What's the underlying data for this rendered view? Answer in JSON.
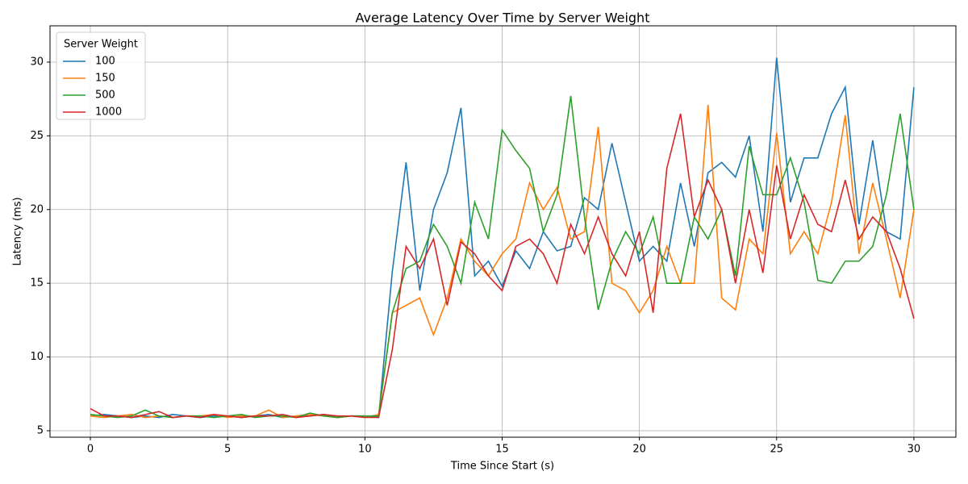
{
  "chart_data": {
    "type": "line",
    "title": "Average Latency Over Time by Server Weight",
    "x_label": "Time Since Start (s)",
    "y_label": "Latency (ms)",
    "legend_title": "Server Weight",
    "legend_position": "upper left",
    "grid": true,
    "xlim": [
      -1.47,
      31.53
    ],
    "ylim": [
      4.56,
      32.46
    ],
    "xticks": [
      0,
      5,
      10,
      15,
      20,
      25,
      30
    ],
    "yticks": [
      5,
      10,
      15,
      20,
      25,
      30
    ],
    "x": [
      0,
      0.5,
      1,
      1.5,
      2,
      2.5,
      3,
      3.5,
      4,
      4.5,
      5,
      5.5,
      6,
      6.5,
      7,
      7.5,
      8,
      8.5,
      9,
      9.5,
      10,
      10.5,
      11,
      11.5,
      12,
      12.5,
      13,
      13.5,
      14,
      14.5,
      15,
      15.5,
      16,
      16.5,
      17,
      17.5,
      18,
      18.5,
      19,
      19.5,
      20,
      20.5,
      21,
      21.5,
      22,
      22.5,
      23,
      23.5,
      24,
      24.5,
      25,
      25.5,
      26,
      26.5,
      27,
      27.5,
      28,
      28.5,
      29,
      29.5,
      30
    ],
    "series": [
      {
        "name": "100",
        "color": "#1f77b4",
        "values": [
          6.0,
          6.1,
          6.0,
          5.9,
          6.0,
          5.9,
          6.1,
          6.0,
          5.9,
          6.0,
          6.0,
          5.9,
          6.0,
          6.1,
          5.9,
          6.0,
          6.0,
          6.1,
          5.9,
          6.0,
          6.0,
          5.9,
          15.8,
          23.2,
          14.5,
          20.0,
          22.5,
          26.9,
          15.5,
          16.5,
          14.8,
          17.2,
          16.0,
          18.5,
          17.2,
          17.5,
          20.8,
          20.0,
          24.5,
          20.5,
          16.5,
          17.5,
          16.5,
          21.8,
          17.5,
          22.5,
          23.2,
          22.2,
          25.0,
          18.5,
          30.3,
          20.5,
          23.5,
          23.5,
          26.5,
          28.3,
          19.0,
          24.7,
          18.5,
          18.0,
          28.3
        ]
      },
      {
        "name": "150",
        "color": "#ff7f0e",
        "values": [
          6.0,
          5.9,
          6.0,
          6.1,
          5.9,
          6.0,
          5.9,
          6.0,
          6.0,
          6.1,
          5.9,
          6.0,
          6.0,
          6.4,
          5.9,
          6.0,
          6.1,
          6.0,
          5.9,
          6.0,
          5.9,
          6.1,
          13.0,
          13.5,
          14.0,
          11.5,
          14.0,
          18.0,
          16.5,
          15.5,
          17.0,
          18.0,
          21.8,
          20.0,
          21.5,
          18.0,
          18.5,
          25.6,
          15.0,
          14.5,
          13.0,
          14.5,
          17.5,
          15.0,
          15.0,
          27.1,
          14.0,
          13.2,
          18.0,
          17.0,
          25.2,
          17.0,
          18.5,
          17.0,
          20.5,
          26.4,
          17.0,
          21.8,
          18.0,
          14.0,
          20.0
        ]
      },
      {
        "name": "500",
        "color": "#2ca02c",
        "values": [
          6.1,
          6.0,
          5.9,
          6.0,
          6.4,
          6.0,
          5.9,
          6.0,
          6.0,
          5.9,
          6.0,
          6.1,
          5.9,
          6.0,
          6.0,
          5.9,
          6.2,
          6.0,
          5.9,
          6.0,
          6.0,
          6.0,
          13.0,
          16.0,
          16.5,
          19.0,
          17.5,
          15.0,
          20.5,
          18.0,
          25.4,
          24.0,
          22.8,
          18.5,
          21.0,
          27.7,
          19.5,
          13.2,
          16.5,
          18.5,
          17.0,
          19.5,
          15.0,
          15.0,
          19.5,
          18.0,
          20.0,
          15.5,
          24.3,
          21.0,
          21.0,
          23.5,
          20.5,
          15.2,
          15.0,
          16.5,
          16.5,
          17.5,
          21.0,
          26.5,
          20.0
        ]
      },
      {
        "name": "1000",
        "color": "#d62728",
        "values": [
          6.5,
          6.0,
          6.0,
          5.9,
          6.1,
          6.3,
          5.9,
          6.0,
          5.9,
          6.1,
          6.0,
          5.9,
          6.0,
          6.0,
          6.1,
          5.9,
          6.0,
          6.1,
          6.0,
          6.0,
          5.9,
          5.9,
          10.5,
          17.5,
          16.0,
          18.0,
          13.5,
          17.8,
          17.0,
          15.5,
          14.5,
          17.5,
          18.0,
          17.0,
          15.0,
          19.0,
          17.0,
          19.5,
          17.0,
          15.5,
          18.5,
          13.0,
          22.8,
          26.5,
          19.5,
          22.0,
          20.0,
          15.0,
          20.0,
          15.7,
          23.0,
          18.0,
          21.0,
          19.0,
          18.5,
          22.0,
          18.0,
          19.5,
          18.5,
          16.0,
          12.6
        ]
      }
    ]
  }
}
